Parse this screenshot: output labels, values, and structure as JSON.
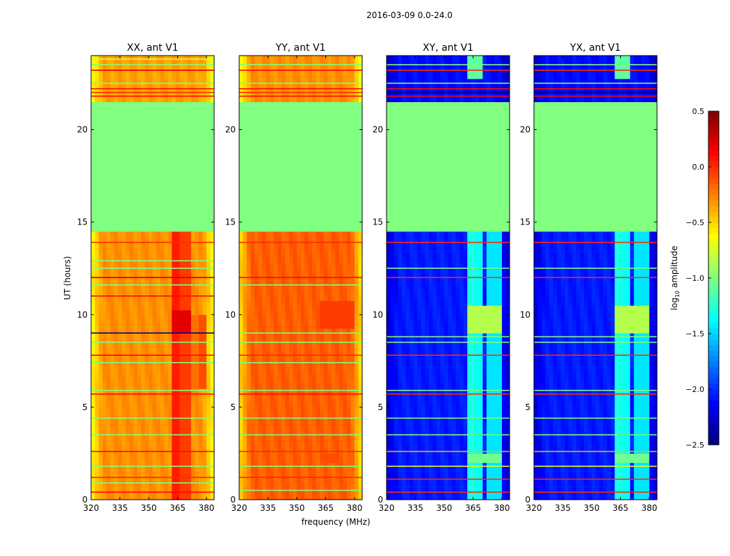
{
  "suptitle": "2016-03-09 0.0-24.0",
  "xlabel": "frequency (MHz)",
  "ylabel": "UT (hours)",
  "colorbar": {
    "label": "log10 amplitude",
    "label_main": "log",
    "label_sub": "10",
    "label_rest": " amplitude",
    "range": [
      -2.5,
      0.5
    ],
    "ticks": [
      "0.5",
      "0.0",
      "−0.5",
      "−1.0",
      "−1.5",
      "−2.0",
      "−2.5"
    ],
    "tick_values": [
      0.5,
      0.0,
      -0.5,
      -1.0,
      -1.5,
      -2.0,
      -2.5
    ],
    "colormap": "jet"
  },
  "chart_data": [
    {
      "type": "heatmap",
      "title": "XX, ant V1",
      "xlim": [
        320,
        384
      ],
      "ylim": [
        0,
        24
      ],
      "xticks": [
        "320",
        "335",
        "350",
        "365",
        "380"
      ],
      "xtick_values": [
        320,
        335,
        350,
        365,
        380
      ],
      "yticks": [
        "0",
        "5",
        "10",
        "15",
        "20"
      ],
      "ytick_values": [
        0,
        5,
        10,
        15,
        20
      ],
      "base": [
        {
          "t": [
            0,
            14.4
          ],
          "v": -0.3
        },
        {
          "t": [
            14.4,
            21.6
          ],
          "v": -1.0
        },
        {
          "t": [
            21.6,
            24
          ],
          "v": -0.35
        }
      ],
      "edge_drop": -0.35,
      "features": [
        {
          "f": [
            362,
            366
          ],
          "t": [
            0,
            14.4
          ],
          "v": 0.35
        },
        {
          "f": [
            367,
            371
          ],
          "t": [
            0,
            14.4
          ],
          "v": 0.25
        },
        {
          "f": [
            372,
            375
          ],
          "t": [
            6,
            10
          ],
          "v": 0.1
        },
        {
          "f": [
            376,
            380
          ],
          "t": [
            6,
            10
          ],
          "v": 0.2
        },
        {
          "f": [
            362,
            371
          ],
          "t": [
            9,
            10.2
          ],
          "v": 0.5
        }
      ],
      "lines": [
        {
          "t": 0.4,
          "v": 0.1
        },
        {
          "t": 0.9,
          "v": -1.0
        },
        {
          "t": 1.2,
          "v": 0.0
        },
        {
          "t": 1.8,
          "v": -1.0
        },
        {
          "t": 2.6,
          "v": 0.1
        },
        {
          "t": 3.5,
          "v": -1.0
        },
        {
          "t": 4.4,
          "v": -1.0
        },
        {
          "t": 5.7,
          "v": 0.1
        },
        {
          "t": 5.9,
          "v": -1.0
        },
        {
          "t": 7.4,
          "v": -1.0
        },
        {
          "t": 7.8,
          "v": 0.1
        },
        {
          "t": 8.5,
          "v": -1.0
        },
        {
          "t": 9.0,
          "v": -2.5
        },
        {
          "t": 11.0,
          "v": 0.1
        },
        {
          "t": 11.6,
          "v": -1.0
        },
        {
          "t": 12.0,
          "v": 0.3
        },
        {
          "t": 12.5,
          "v": -1.0
        },
        {
          "t": 12.9,
          "v": -1.0
        },
        {
          "t": 13.9,
          "v": 0.0
        },
        {
          "t": 21.8,
          "v": 0.1
        },
        {
          "t": 22.0,
          "v": 0.0
        },
        {
          "t": 22.2,
          "v": 0.1
        },
        {
          "t": 22.5,
          "v": -1.0
        },
        {
          "t": 23.2,
          "v": 0.2
        },
        {
          "t": 23.5,
          "v": -1.0
        },
        {
          "t": 23.8,
          "v": -0.8
        }
      ]
    },
    {
      "type": "heatmap",
      "title": "YY, ant V1",
      "xlim": [
        320,
        384
      ],
      "ylim": [
        0,
        24
      ],
      "xticks": [
        "320",
        "335",
        "350",
        "365",
        "380"
      ],
      "xtick_values": [
        320,
        335,
        350,
        365,
        380
      ],
      "yticks": [
        "0",
        "5",
        "10",
        "15",
        "20"
      ],
      "ytick_values": [
        0,
        5,
        10,
        15,
        20
      ],
      "base": [
        {
          "t": [
            0,
            14.4
          ],
          "v": -0.15
        },
        {
          "t": [
            14.4,
            21.6
          ],
          "v": -1.0
        },
        {
          "t": [
            21.6,
            24
          ],
          "v": -0.3
        }
      ],
      "edge_drop": -0.4,
      "features": [
        {
          "f": [
            362,
            380
          ],
          "t": [
            9.2,
            10.8
          ],
          "v": 0.1
        },
        {
          "f": [
            362,
            372
          ],
          "t": [
            2.0,
            2.4
          ],
          "v": 0.05
        }
      ],
      "lines": [
        {
          "t": 0.5,
          "v": -1.0
        },
        {
          "t": 1.2,
          "v": 0.0
        },
        {
          "t": 1.8,
          "v": -1.0
        },
        {
          "t": 2.6,
          "v": 0.0
        },
        {
          "t": 3.5,
          "v": -1.0
        },
        {
          "t": 4.4,
          "v": -1.0
        },
        {
          "t": 5.7,
          "v": 0.1
        },
        {
          "t": 5.9,
          "v": -1.0
        },
        {
          "t": 7.4,
          "v": -1.0
        },
        {
          "t": 7.8,
          "v": 0.0
        },
        {
          "t": 8.5,
          "v": -1.0
        },
        {
          "t": 9.0,
          "v": -1.0
        },
        {
          "t": 11.6,
          "v": -1.0
        },
        {
          "t": 12.0,
          "v": 0.1
        },
        {
          "t": 13.9,
          "v": 0.0
        },
        {
          "t": 21.8,
          "v": 0.1
        },
        {
          "t": 22.0,
          "v": 0.0
        },
        {
          "t": 22.2,
          "v": 0.1
        },
        {
          "t": 22.5,
          "v": -1.0
        },
        {
          "t": 23.2,
          "v": 0.1
        },
        {
          "t": 23.5,
          "v": -1.0
        }
      ]
    },
    {
      "type": "heatmap",
      "title": "XY, ant V1",
      "xlim": [
        320,
        384
      ],
      "ylim": [
        0,
        24
      ],
      "xticks": [
        "320",
        "335",
        "350",
        "365",
        "380"
      ],
      "xtick_values": [
        320,
        335,
        350,
        365,
        380
      ],
      "yticks": [
        "0",
        "5",
        "10",
        "15",
        "20"
      ],
      "ytick_values": [
        0,
        5,
        10,
        15,
        20
      ],
      "base": [
        {
          "t": [
            0,
            14.4
          ],
          "v": -2.05
        },
        {
          "t": [
            14.4,
            21.6
          ],
          "v": -1.0
        },
        {
          "t": [
            21.6,
            24
          ],
          "v": -2.1
        }
      ],
      "edge_drop": -0.2,
      "features": [
        {
          "f": [
            363,
            366
          ],
          "t": [
            0,
            14.4
          ],
          "v": 0.75
        },
        {
          "f": [
            367,
            370
          ],
          "t": [
            0,
            14.4
          ],
          "v": 0.7
        },
        {
          "f": [
            372,
            375
          ],
          "t": [
            0,
            14.4
          ],
          "v": 0.6
        },
        {
          "f": [
            377,
            380
          ],
          "t": [
            0,
            14.4
          ],
          "v": 0.6
        },
        {
          "f": [
            363,
            380
          ],
          "t": [
            9.0,
            10.6
          ],
          "v": 1.2
        },
        {
          "f": [
            363,
            380
          ],
          "t": [
            2.0,
            2.4
          ],
          "v": 1.0
        },
        {
          "f": [
            363,
            370
          ],
          "t": [
            22.8,
            24
          ],
          "v": 1.0
        }
      ],
      "lines": [
        {
          "t": 0.4,
          "v": 0.0
        },
        {
          "t": 1.1,
          "v": 0.0
        },
        {
          "t": 1.8,
          "v": -0.7
        },
        {
          "t": 2.6,
          "v": -0.4
        },
        {
          "t": 3.5,
          "v": -1.0
        },
        {
          "t": 4.4,
          "v": -1.0
        },
        {
          "t": 5.7,
          "v": 0.0
        },
        {
          "t": 5.9,
          "v": -1.0
        },
        {
          "t": 7.8,
          "v": 0.0
        },
        {
          "t": 8.5,
          "v": -1.0
        },
        {
          "t": 8.8,
          "v": -1.0
        },
        {
          "t": 12.0,
          "v": 0.0
        },
        {
          "t": 12.5,
          "v": -1.0
        },
        {
          "t": 13.9,
          "v": 0.0
        },
        {
          "t": 21.8,
          "v": 0.1
        },
        {
          "t": 22.0,
          "v": -2.5
        },
        {
          "t": 22.2,
          "v": 0.1
        },
        {
          "t": 22.5,
          "v": -1.0
        },
        {
          "t": 23.2,
          "v": 0.0
        },
        {
          "t": 23.5,
          "v": -1.0
        }
      ]
    },
    {
      "type": "heatmap",
      "title": "YX, ant V1",
      "xlim": [
        320,
        384
      ],
      "ylim": [
        0,
        24
      ],
      "xticks": [
        "320",
        "335",
        "350",
        "365",
        "380"
      ],
      "xtick_values": [
        320,
        335,
        350,
        365,
        380
      ],
      "yticks": [
        "0",
        "5",
        "10",
        "15",
        "20"
      ],
      "ytick_values": [
        0,
        5,
        10,
        15,
        20
      ],
      "base": [
        {
          "t": [
            0,
            14.4
          ],
          "v": -2.05
        },
        {
          "t": [
            14.4,
            21.6
          ],
          "v": -1.0
        },
        {
          "t": [
            21.6,
            24
          ],
          "v": -2.1
        }
      ],
      "edge_drop": -0.2,
      "features": [
        {
          "f": [
            363,
            366
          ],
          "t": [
            0,
            14.4
          ],
          "v": 0.75
        },
        {
          "f": [
            367,
            370
          ],
          "t": [
            0,
            14.4
          ],
          "v": 0.7
        },
        {
          "f": [
            372,
            375
          ],
          "t": [
            0,
            14.4
          ],
          "v": 0.6
        },
        {
          "f": [
            377,
            380
          ],
          "t": [
            0,
            14.4
          ],
          "v": 0.6
        },
        {
          "f": [
            363,
            380
          ],
          "t": [
            9.0,
            10.6
          ],
          "v": 1.2
        },
        {
          "f": [
            363,
            380
          ],
          "t": [
            2.0,
            2.4
          ],
          "v": 1.0
        },
        {
          "f": [
            363,
            370
          ],
          "t": [
            22.8,
            24
          ],
          "v": 1.0
        }
      ],
      "lines": [
        {
          "t": 0.4,
          "v": 0.0
        },
        {
          "t": 1.1,
          "v": 0.0
        },
        {
          "t": 1.8,
          "v": -0.7
        },
        {
          "t": 2.6,
          "v": -0.4
        },
        {
          "t": 3.5,
          "v": -1.0
        },
        {
          "t": 4.4,
          "v": -1.0
        },
        {
          "t": 5.7,
          "v": 0.0
        },
        {
          "t": 5.9,
          "v": -1.0
        },
        {
          "t": 7.8,
          "v": 0.0
        },
        {
          "t": 8.5,
          "v": -1.0
        },
        {
          "t": 8.8,
          "v": -1.0
        },
        {
          "t": 12.0,
          "v": 0.0
        },
        {
          "t": 12.5,
          "v": -1.0
        },
        {
          "t": 13.9,
          "v": 0.0
        },
        {
          "t": 21.8,
          "v": 0.1
        },
        {
          "t": 22.0,
          "v": -2.5
        },
        {
          "t": 22.2,
          "v": 0.1
        },
        {
          "t": 22.5,
          "v": -1.0
        },
        {
          "t": 23.2,
          "v": 0.0
        },
        {
          "t": 23.5,
          "v": -1.0
        }
      ]
    }
  ]
}
